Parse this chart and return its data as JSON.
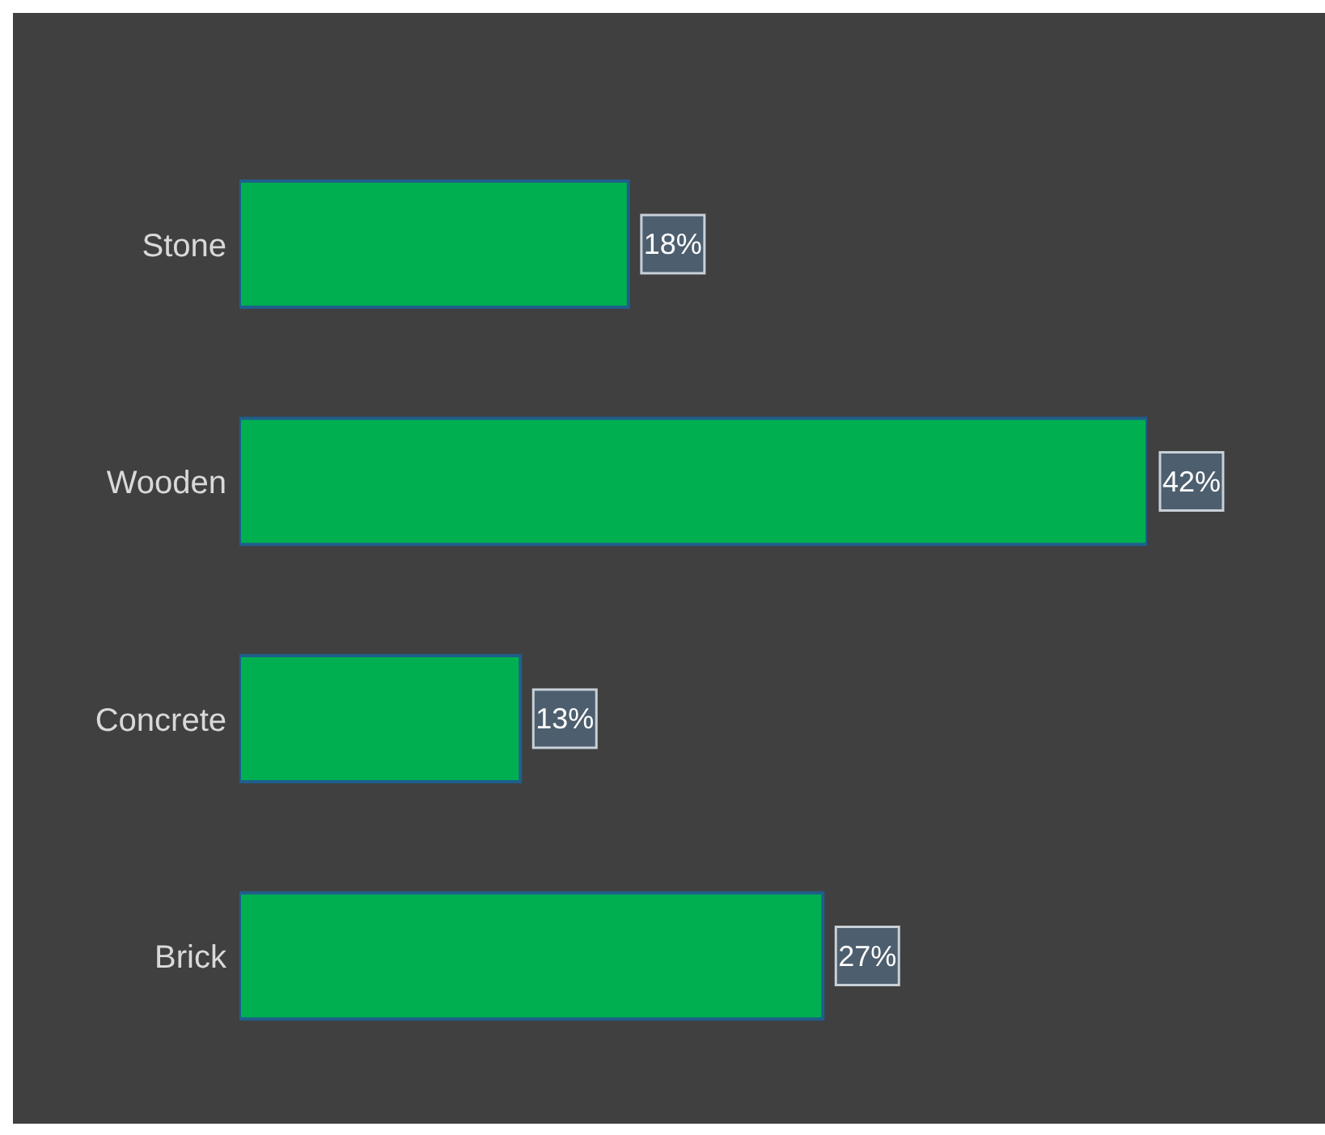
{
  "chart_data": {
    "type": "bar",
    "orientation": "horizontal",
    "categories": [
      "Stone",
      "Wooden",
      "Concrete",
      "Brick"
    ],
    "values": [
      18,
      42,
      13,
      27
    ],
    "color": "#00b050",
    "value_labels": [
      "18%",
      "42%",
      "13%",
      "27%"
    ]
  }
}
